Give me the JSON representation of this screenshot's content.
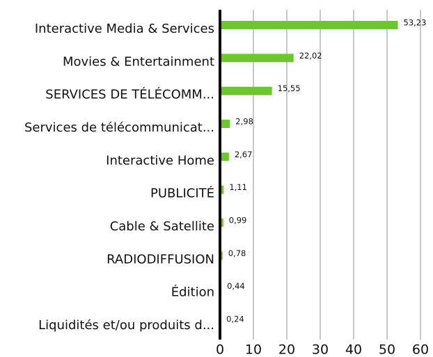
{
  "chart_data": {
    "type": "bar",
    "orientation": "horizontal",
    "categories": [
      "Interactive Media & Services",
      "Movies & Entertainment",
      "SERVICES DE TÉLÉCOMM...",
      "Services de télécommunicat...",
      "Interactive Home",
      "PUBLICITÉ",
      "Cable & Satellite",
      "RADIODIFFUSION",
      "Édition",
      "Liquidités et/ou produits d..."
    ],
    "values": [
      53.23,
      22.02,
      15.55,
      2.98,
      2.67,
      1.11,
      0.99,
      0.78,
      0.44,
      0.24
    ],
    "value_labels": [
      "53,23",
      "22,02",
      "15,55",
      "2,98",
      "2,67",
      "1,11",
      "0,99",
      "0,78",
      "0,44",
      "0,24"
    ],
    "color": "#6cc531",
    "xlim": [
      0,
      60
    ],
    "xticks": [
      0,
      10,
      20,
      30,
      40,
      50,
      60
    ],
    "grid": true
  }
}
